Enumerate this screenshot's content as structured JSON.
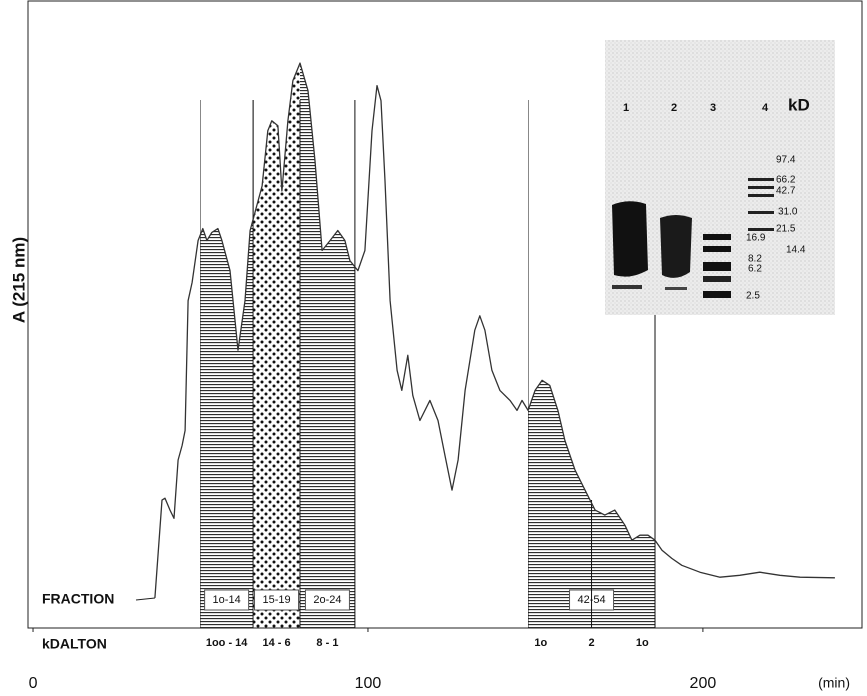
{
  "chart_data": {
    "type": "line",
    "y_label": "A (215 nm)",
    "x_label": "(min)",
    "color": "#333333",
    "xlim": [
      -1.5,
      247.5
    ],
    "xticks": [
      0,
      100,
      200
    ],
    "ylim": [
      0,
      100
    ],
    "x": [
      36.4,
      38.5,
      39.4,
      40.9,
      42.1,
      43.3,
      44.5,
      45.4,
      46.3,
      47.5,
      49.3,
      50.7,
      51.9,
      53.4,
      55.2,
      56.4,
      58.8,
      61.2,
      63.3,
      64.8,
      68.4,
      70.1,
      71.3,
      73.1,
      74.3,
      76.1,
      77.6,
      79.7,
      82.1,
      84.2,
      86.3,
      88.7,
      91.0,
      93.1,
      94.6,
      97.0,
      99.1,
      101.2,
      102.7,
      103.9,
      105.1,
      106.6,
      108.7,
      110.1,
      111.9,
      113.4,
      115.5,
      118.5,
      120.9,
      123.0,
      125.1,
      126.9,
      129.0,
      131.9,
      133.4,
      134.9,
      137.0,
      139.4,
      142.4,
      144.5,
      146.0,
      147.8,
      149.9,
      152.0,
      154.3,
      156.7,
      158.8,
      161.8,
      164.8,
      167.8,
      170.7,
      173.7,
      176.7,
      178.8,
      181.2,
      183.6,
      185.7,
      187.8,
      190.7,
      193.7,
      199.1,
      205.1,
      211.0,
      217.0,
      223.0,
      229.0,
      239.4
    ],
    "values": [
      4.8,
      20.4,
      20.7,
      18.8,
      17.5,
      26.8,
      29.1,
      31.5,
      52.2,
      55.1,
      61.8,
      63.7,
      61.8,
      63.1,
      63.7,
      61.8,
      57.0,
      44.3,
      52.2,
      63.4,
      70.5,
      79.3,
      80.9,
      80.1,
      69.7,
      80.9,
      87.3,
      90.1,
      85.7,
      74.5,
      60.2,
      61.8,
      63.4,
      61.8,
      58.6,
      57.0,
      60.2,
      79.3,
      86.5,
      84.1,
      71.3,
      52.2,
      41.1,
      37.9,
      43.5,
      37.1,
      33.1,
      36.3,
      33.1,
      27.5,
      22.0,
      26.8,
      37.9,
      47.5,
      49.8,
      47.5,
      41.1,
      37.9,
      36.3,
      34.7,
      36.3,
      34.7,
      37.9,
      39.5,
      38.7,
      34.7,
      29.9,
      25.2,
      22.0,
      18.8,
      18.0,
      18.8,
      16.4,
      14.0,
      14.8,
      14.8,
      14.0,
      12.4,
      11.1,
      10.0,
      8.9,
      8.1,
      8.4,
      8.9,
      8.4,
      8.1,
      8.0
    ],
    "fraction_title": "FRACTION",
    "kdalton_title": "kDALTON",
    "fractions": [
      {
        "label": "1o-14",
        "kdalton": [
          "1oo - 14"
        ],
        "start": 49.9,
        "end": 65.7,
        "pattern": "hatch"
      },
      {
        "label": "15-19",
        "kdalton": [
          "14 - 6"
        ],
        "start": 65.7,
        "end": 79.7,
        "pattern": "dots"
      },
      {
        "label": "2o-24",
        "kdalton": [
          "8 - 1"
        ],
        "start": 79.7,
        "end": 96.1,
        "pattern": "hatch"
      },
      {
        "label": "42-54",
        "kdalton": [
          "1o",
          "2",
          "1o"
        ],
        "start": 147.8,
        "end": 185.7,
        "pattern": "hatch"
      }
    ],
    "gel": {
      "lanes": [
        "1",
        "2",
        "3",
        "4"
      ],
      "unit": "kD",
      "markers": [
        "97.4",
        "66.2",
        "42.7",
        "31.0",
        "21.5",
        "16.9",
        "14.4",
        "8.2",
        "6.2",
        "2.5"
      ]
    }
  }
}
